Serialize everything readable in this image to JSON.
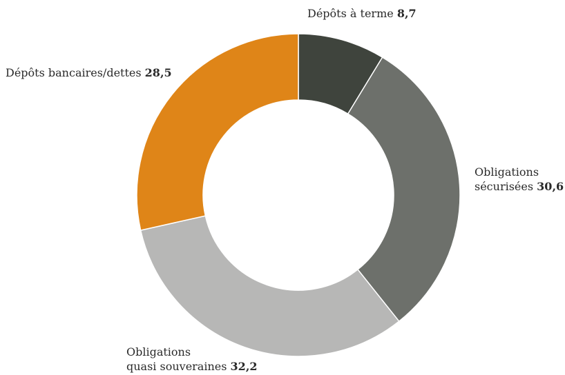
{
  "chart_data": {
    "type": "pie",
    "variant": "donut",
    "title": "",
    "slices": [
      {
        "label": "Dépôts à terme",
        "value": 8.7,
        "value_text": "8,7",
        "color": "#3f443d"
      },
      {
        "label": "Obligations sécurisées",
        "value": 30.6,
        "value_text": "30,6",
        "color": "#6d706b"
      },
      {
        "label": "Obligations quasi souveraines",
        "value": 32.2,
        "value_text": "32,2",
        "color": "#b7b7b6"
      },
      {
        "label": "Dépôts bancaires/dettes",
        "value": 28.5,
        "value_text": "28,5",
        "color": "#df8518"
      }
    ],
    "legend": "none",
    "label_lines": {
      "s0": [
        "Dépôts à terme"
      ],
      "s1": [
        "Obligations",
        "sécurisées"
      ],
      "s2": [
        "Obligations",
        "quasi souveraines"
      ],
      "s3": [
        "Dépôts bancaires/dettes"
      ]
    }
  }
}
